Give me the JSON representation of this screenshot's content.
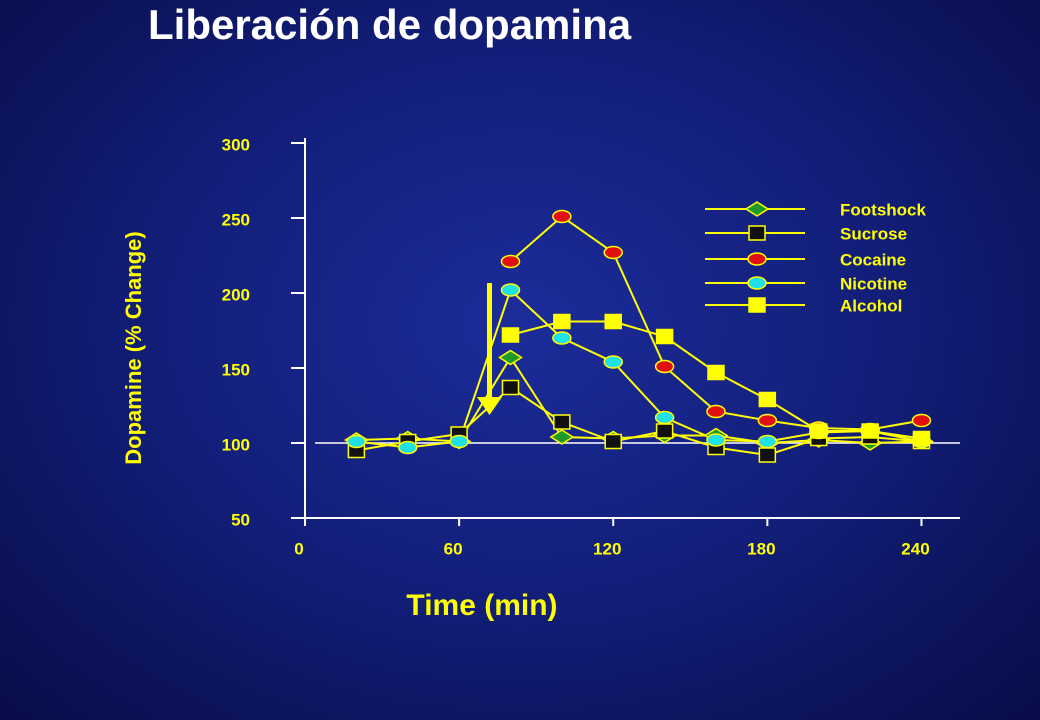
{
  "chart_data": {
    "type": "line",
    "title": "Liberación de dopamina",
    "xlabel": "Time (min)",
    "ylabel": "Dopamine (% Change)",
    "x": [
      20,
      40,
      60,
      80,
      100,
      120,
      140,
      160,
      180,
      200,
      220,
      240
    ],
    "xlim": [
      0,
      255
    ],
    "xticks": [
      0,
      60,
      120,
      180,
      240
    ],
    "ylim": [
      50,
      300
    ],
    "yticks": [
      50,
      100,
      150,
      200,
      250,
      300
    ],
    "hline": 100,
    "line_color": "#ffff00",
    "legend": "upper right",
    "series": [
      {
        "name": "Footshock",
        "color": "#1f9a2a",
        "marker": "diamond",
        "values": [
          102,
          103,
          101,
          157,
          104,
          103,
          105,
          105,
          100,
          102,
          100,
          101
        ]
      },
      {
        "name": "Sucrose",
        "color": "#111111",
        "marker": "square",
        "values": [
          95,
          101,
          106,
          137,
          114,
          101,
          108,
          97,
          92,
          103,
          104,
          101
        ]
      },
      {
        "name": "Cocaine",
        "color": "#e01010",
        "marker": "ellipse",
        "values": [
          null,
          null,
          null,
          221,
          251,
          227,
          151,
          121,
          115,
          110,
          109,
          115
        ]
      },
      {
        "name": "Nicotine",
        "color": "#20e0e8",
        "marker": "ellipse",
        "values": [
          101,
          97,
          101,
          202,
          170,
          154,
          117,
          102,
          101,
          107,
          108,
          101
        ]
      },
      {
        "name": "Alcohol",
        "color": "#ffff00",
        "marker": "square",
        "values": [
          null,
          null,
          null,
          172,
          181,
          181,
          171,
          147,
          129,
          108,
          108,
          103
        ]
      }
    ]
  }
}
